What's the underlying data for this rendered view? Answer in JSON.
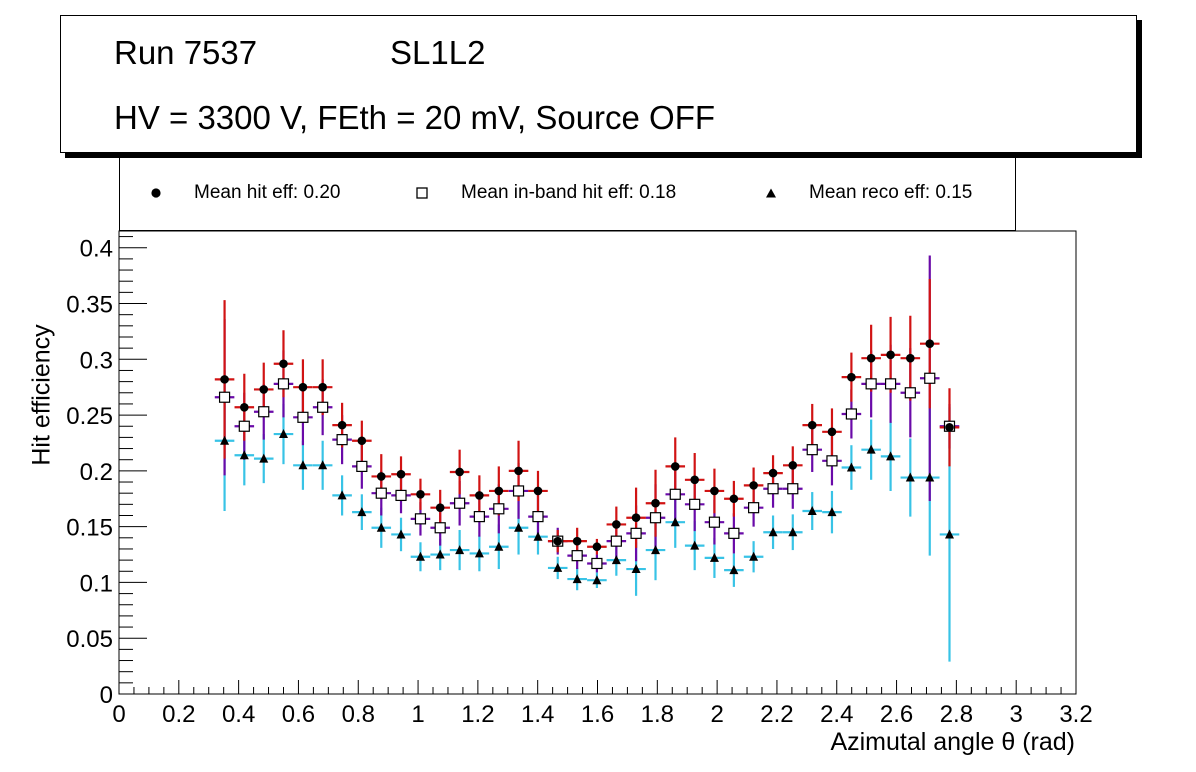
{
  "header": {
    "run": "Run 7537",
    "superlayer": "SL1L2",
    "conditions": "HV = 3300 V, FEth = 20 mV, Source OFF"
  },
  "legend": {
    "hit": "Mean hit  eff: 0.20",
    "inband": "Mean in-band hit eff: 0.18",
    "reco": "Mean reco eff: 0.15"
  },
  "colors": {
    "hit_err": "#d11313",
    "inband_err": "#6a0aa8",
    "reco_err": "#38c3e6",
    "hit_marker": "#000000",
    "inband_marker_fill": "#ffffff",
    "reco_marker": "#000000"
  },
  "chart_data": {
    "type": "scatter",
    "title": "Run 7537  SL1L2 — HV = 3300 V, FEth = 20 mV, Source OFF",
    "xlabel": "Azimutal angle θ (rad)",
    "ylabel": "Hit efficiency",
    "xlim": [
      0,
      3.2
    ],
    "ylim": [
      0,
      0.415
    ],
    "xticks": [
      "0",
      "0.2",
      "0.4",
      "0.6",
      "0.8",
      "1",
      "1.2",
      "1.4",
      "1.6",
      "1.8",
      "2",
      "2.2",
      "2.4",
      "2.6",
      "2.8",
      "3",
      "3.2"
    ],
    "yticks": [
      "0",
      "0.05",
      "0.1",
      "0.15",
      "0.2",
      "0.25",
      "0.3",
      "0.35",
      "0.4"
    ],
    "grid": true,
    "bin_half_width": 0.0327,
    "x": [
      0.353,
      0.419,
      0.484,
      0.55,
      0.615,
      0.681,
      0.746,
      0.812,
      0.877,
      0.943,
      1.008,
      1.074,
      1.139,
      1.205,
      1.27,
      1.336,
      1.401,
      1.467,
      1.532,
      1.598,
      1.663,
      1.729,
      1.794,
      1.86,
      1.925,
      1.991,
      2.056,
      2.122,
      2.187,
      2.253,
      2.318,
      2.384,
      2.449,
      2.515,
      2.58,
      2.646,
      2.711,
      2.777
    ],
    "series": [
      {
        "name": "Mean hit  eff: 0.20",
        "values": [
          0.282,
          0.257,
          0.273,
          0.296,
          0.275,
          0.275,
          0.241,
          0.227,
          0.195,
          0.197,
          0.179,
          0.167,
          0.199,
          0.178,
          0.182,
          0.2,
          0.182,
          0.137,
          0.137,
          0.132,
          0.152,
          0.158,
          0.171,
          0.204,
          0.192,
          0.182,
          0.175,
          0.187,
          0.198,
          0.205,
          0.241,
          0.235,
          0.284,
          0.301,
          0.304,
          0.301,
          0.314,
          0.239
        ],
        "err_up": [
          0.071,
          0.03,
          0.024,
          0.03,
          0.025,
          0.025,
          0.02,
          0.018,
          0.02,
          0.016,
          0.014,
          0.016,
          0.02,
          0.018,
          0.022,
          0.027,
          0.018,
          0.01,
          0.012,
          0.007,
          0.016,
          0.027,
          0.03,
          0.026,
          0.024,
          0.02,
          0.016,
          0.016,
          0.016,
          0.017,
          0.019,
          0.021,
          0.022,
          0.03,
          0.034,
          0.038,
          0.058,
          0.035
        ],
        "err_down": [
          0.071,
          0.03,
          0.024,
          0.03,
          0.025,
          0.025,
          0.02,
          0.018,
          0.02,
          0.016,
          0.014,
          0.016,
          0.02,
          0.018,
          0.022,
          0.027,
          0.018,
          0.01,
          0.012,
          0.007,
          0.016,
          0.027,
          0.03,
          0.026,
          0.024,
          0.02,
          0.016,
          0.016,
          0.016,
          0.017,
          0.019,
          0.021,
          0.022,
          0.03,
          0.034,
          0.038,
          0.058,
          0.035
        ]
      },
      {
        "name": "Mean in-band hit eff: 0.18",
        "values": [
          0.266,
          0.24,
          0.253,
          0.278,
          0.248,
          0.257,
          0.228,
          0.204,
          0.18,
          0.178,
          0.157,
          0.149,
          0.171,
          0.159,
          0.166,
          0.182,
          0.159,
          0.137,
          0.124,
          0.117,
          0.137,
          0.144,
          0.158,
          0.179,
          0.17,
          0.154,
          0.144,
          0.167,
          0.184,
          0.184,
          0.219,
          0.209,
          0.251,
          0.278,
          0.278,
          0.27,
          0.283,
          0.24
        ],
        "err_up": [
          0.07,
          0.03,
          0.025,
          0.03,
          0.025,
          0.025,
          0.022,
          0.02,
          0.02,
          0.016,
          0.015,
          0.016,
          0.02,
          0.018,
          0.022,
          0.025,
          0.02,
          0.012,
          0.012,
          0.008,
          0.016,
          0.025,
          0.03,
          0.025,
          0.024,
          0.02,
          0.018,
          0.017,
          0.017,
          0.018,
          0.02,
          0.022,
          0.022,
          0.03,
          0.035,
          0.04,
          0.11,
          0.02
        ],
        "err_down": [
          0.07,
          0.03,
          0.025,
          0.03,
          0.025,
          0.025,
          0.022,
          0.02,
          0.02,
          0.016,
          0.015,
          0.016,
          0.02,
          0.018,
          0.022,
          0.025,
          0.02,
          0.012,
          0.012,
          0.008,
          0.016,
          0.025,
          0.03,
          0.025,
          0.024,
          0.02,
          0.018,
          0.017,
          0.017,
          0.018,
          0.02,
          0.022,
          0.022,
          0.03,
          0.035,
          0.04,
          0.11,
          0.02
        ]
      },
      {
        "name": "Mean reco eff: 0.15",
        "values": [
          0.227,
          0.214,
          0.211,
          0.233,
          0.205,
          0.205,
          0.178,
          0.163,
          0.149,
          0.143,
          0.123,
          0.125,
          0.129,
          0.126,
          0.132,
          0.149,
          0.141,
          0.113,
          0.103,
          0.102,
          0.12,
          0.112,
          0.129,
          0.154,
          0.133,
          0.122,
          0.111,
          0.123,
          0.145,
          0.145,
          0.164,
          0.163,
          0.203,
          0.219,
          0.213,
          0.194,
          0.194,
          0.143
        ],
        "err_up": [
          0.063,
          0.027,
          0.022,
          0.027,
          0.022,
          0.022,
          0.018,
          0.016,
          0.018,
          0.015,
          0.013,
          0.014,
          0.018,
          0.016,
          0.02,
          0.024,
          0.016,
          0.01,
          0.01,
          0.007,
          0.014,
          0.024,
          0.027,
          0.023,
          0.022,
          0.018,
          0.015,
          0.014,
          0.015,
          0.016,
          0.017,
          0.019,
          0.02,
          0.027,
          0.031,
          0.035,
          0.07,
          0.114
        ],
        "err_down": [
          0.063,
          0.027,
          0.022,
          0.027,
          0.022,
          0.022,
          0.018,
          0.016,
          0.018,
          0.015,
          0.013,
          0.014,
          0.018,
          0.016,
          0.02,
          0.024,
          0.016,
          0.01,
          0.01,
          0.007,
          0.014,
          0.024,
          0.027,
          0.023,
          0.022,
          0.018,
          0.015,
          0.014,
          0.015,
          0.016,
          0.017,
          0.019,
          0.02,
          0.027,
          0.031,
          0.035,
          0.07,
          0.114
        ]
      }
    ]
  }
}
